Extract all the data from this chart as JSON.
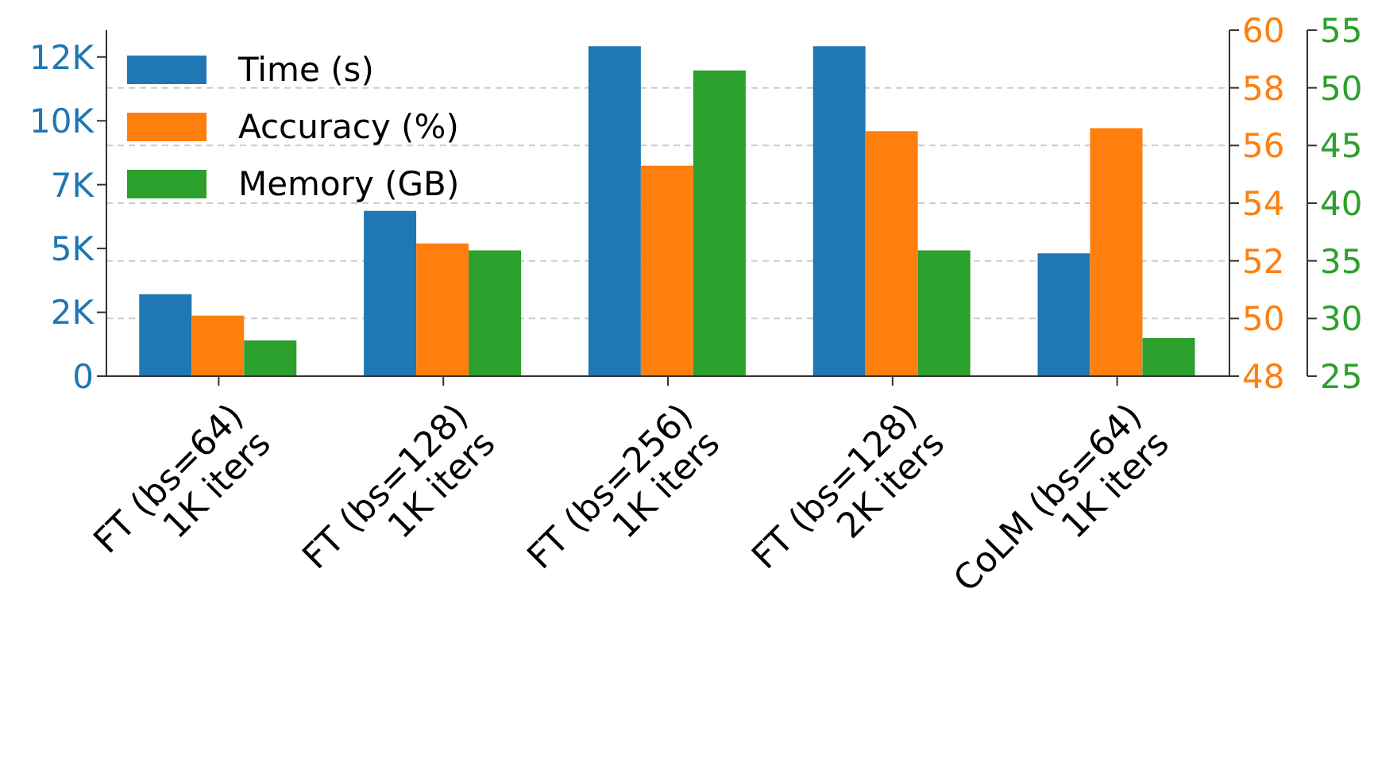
{
  "chart_data": {
    "type": "bar",
    "categories": [
      "FT (bs=64)\n1K iters",
      "FT (bs=128)\n1K iters",
      "FT (bs=256)\n1K iters",
      "FT (bs=128)\n2K iters",
      "CoLM (bs=64)\n1K iters"
    ],
    "series": [
      {
        "name": "Time (s)",
        "color": "#1f77b4",
        "axis": "y",
        "values": [
          3210,
          6470,
          12920,
          12920,
          4810
        ]
      },
      {
        "name": "Accuracy (%)",
        "color": "#ff7f0e",
        "axis": "y2",
        "values": [
          50.1,
          52.6,
          55.3,
          56.5,
          56.6
        ]
      },
      {
        "name": "Memory (GB)",
        "color": "#2ca02c",
        "axis": "y3",
        "values": [
          28.1,
          35.9,
          51.5,
          35.9,
          28.3
        ]
      }
    ],
    "ylim": [
      0,
      13550
    ],
    "yticks": [
      0,
      {
        "value": 2500,
        "label": "2K"
      },
      {
        "value": 5000,
        "label": "5K"
      },
      {
        "value": 7500,
        "label": "7K"
      },
      {
        "value": 10000,
        "label": "10K"
      },
      {
        "value": 12500,
        "label": "12K"
      }
    ],
    "y2lim": [
      48,
      60
    ],
    "y2ticks": [
      48,
      50,
      52,
      54,
      56,
      58,
      60
    ],
    "y3lim": [
      25,
      55
    ],
    "y3ticks": [
      25,
      30,
      35,
      40,
      45,
      50,
      55
    ],
    "grid": "y",
    "legend": "top left"
  }
}
